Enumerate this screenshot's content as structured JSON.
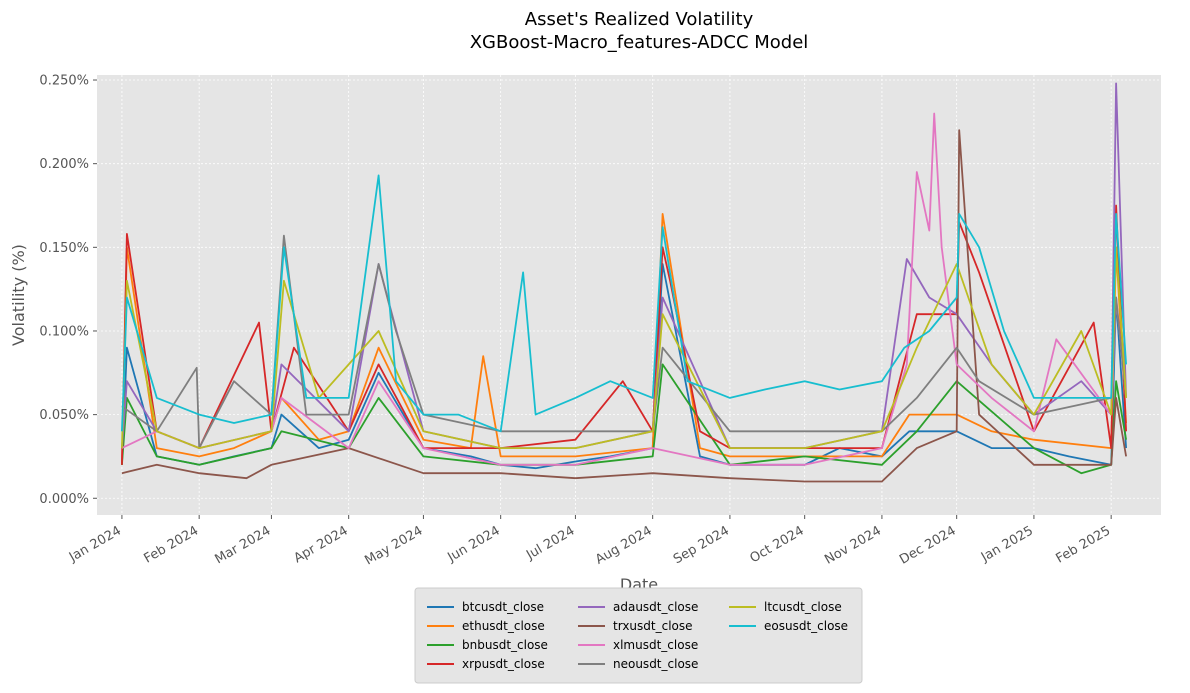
{
  "chart_data": {
    "type": "line",
    "title": "Asset's Realized Volatility",
    "subtitle": "XGBoost-Macro_features-ADCC Model",
    "xlabel": "Date",
    "ylabel": "Volatility (%)",
    "x_range": [
      "2023-12-22",
      "2025-02-21"
    ],
    "ylim": [
      -0.0001,
      0.00253
    ],
    "y_format": "percent_3dp",
    "grid": true,
    "legend_position": "bottom-center",
    "legend_columns": 3,
    "x_ticks": [
      {
        "date": "2024-01-01",
        "label": "Jan 2024"
      },
      {
        "date": "2024-02-01",
        "label": "Feb 2024"
      },
      {
        "date": "2024-03-01",
        "label": "Mar 2024"
      },
      {
        "date": "2024-04-01",
        "label": "Apr 2024"
      },
      {
        "date": "2024-05-01",
        "label": "May 2024"
      },
      {
        "date": "2024-06-01",
        "label": "Jun 2024"
      },
      {
        "date": "2024-07-01",
        "label": "Jul 2024"
      },
      {
        "date": "2024-08-01",
        "label": "Aug 2024"
      },
      {
        "date": "2024-09-01",
        "label": "Sep 2024"
      },
      {
        "date": "2024-10-01",
        "label": "Oct 2024"
      },
      {
        "date": "2024-11-01",
        "label": "Nov 2024"
      },
      {
        "date": "2024-12-01",
        "label": "Dec 2024"
      },
      {
        "date": "2025-01-01",
        "label": "Jan 2025"
      },
      {
        "date": "2025-02-01",
        "label": "Feb 2025"
      }
    ],
    "y_ticks": [
      {
        "value": 0.0,
        "label": "0.000%"
      },
      {
        "value": 0.0005,
        "label": "0.050%"
      },
      {
        "value": 0.001,
        "label": "0.100%"
      },
      {
        "value": 0.0015,
        "label": "0.150%"
      },
      {
        "value": 0.002,
        "label": "0.200%"
      },
      {
        "value": 0.0025,
        "label": "0.250%"
      }
    ],
    "series": [
      {
        "name": "btcusdt_close",
        "color": "#1f77b4",
        "x": [
          "2024-01-01",
          "2024-01-03",
          "2024-01-15",
          "2024-02-01",
          "2024-02-15",
          "2024-03-01",
          "2024-03-05",
          "2024-03-20",
          "2024-04-01",
          "2024-04-13",
          "2024-05-01",
          "2024-05-20",
          "2024-06-01",
          "2024-06-15",
          "2024-07-01",
          "2024-07-15",
          "2024-08-01",
          "2024-08-05",
          "2024-08-20",
          "2024-09-01",
          "2024-09-15",
          "2024-10-01",
          "2024-10-15",
          "2024-11-01",
          "2024-11-12",
          "2024-12-01",
          "2024-12-15",
          "2025-01-01",
          "2025-01-15",
          "2025-02-01",
          "2025-02-03",
          "2025-02-07"
        ],
        "y": [
          0.0002,
          0.0009,
          0.00025,
          0.0002,
          0.00025,
          0.0003,
          0.0005,
          0.0003,
          0.00035,
          0.00075,
          0.0003,
          0.00025,
          0.0002,
          0.00018,
          0.00022,
          0.00025,
          0.0003,
          0.0014,
          0.00025,
          0.0002,
          0.0002,
          0.0002,
          0.0003,
          0.00025,
          0.0004,
          0.0004,
          0.0003,
          0.0003,
          0.00025,
          0.0002,
          0.0012,
          0.0003
        ]
      },
      {
        "name": "ethusdt_close",
        "color": "#ff7f0e",
        "x": [
          "2024-01-01",
          "2024-01-03",
          "2024-01-15",
          "2024-02-01",
          "2024-02-15",
          "2024-03-01",
          "2024-03-05",
          "2024-03-20",
          "2024-04-01",
          "2024-04-13",
          "2024-05-01",
          "2024-05-20",
          "2024-05-25",
          "2024-06-01",
          "2024-07-01",
          "2024-08-01",
          "2024-08-05",
          "2024-08-20",
          "2024-09-01",
          "2024-10-01",
          "2024-11-01",
          "2024-11-12",
          "2024-12-01",
          "2024-12-15",
          "2025-01-01",
          "2025-02-01",
          "2025-02-03",
          "2025-02-07"
        ],
        "y": [
          0.0002,
          0.0015,
          0.0003,
          0.00025,
          0.0003,
          0.0004,
          0.0006,
          0.00035,
          0.0004,
          0.0009,
          0.00035,
          0.0003,
          0.00085,
          0.00025,
          0.00025,
          0.0003,
          0.0017,
          0.0003,
          0.00025,
          0.00025,
          0.00025,
          0.0005,
          0.0005,
          0.0004,
          0.00035,
          0.0003,
          0.0015,
          0.00045
        ]
      },
      {
        "name": "bnbusdt_close",
        "color": "#2ca02c",
        "x": [
          "2024-01-01",
          "2024-01-03",
          "2024-01-15",
          "2024-02-01",
          "2024-03-01",
          "2024-03-05",
          "2024-04-01",
          "2024-04-13",
          "2024-05-01",
          "2024-06-01",
          "2024-07-01",
          "2024-08-01",
          "2024-08-05",
          "2024-09-01",
          "2024-10-01",
          "2024-11-01",
          "2024-11-15",
          "2024-12-01",
          "2025-01-01",
          "2025-01-20",
          "2025-02-01",
          "2025-02-03",
          "2025-02-07"
        ],
        "y": [
          0.0002,
          0.0006,
          0.00025,
          0.0002,
          0.0003,
          0.0004,
          0.0003,
          0.0006,
          0.00025,
          0.0002,
          0.0002,
          0.00025,
          0.0008,
          0.0002,
          0.00025,
          0.0002,
          0.0004,
          0.0007,
          0.0003,
          0.00015,
          0.0002,
          0.0007,
          0.00035
        ]
      },
      {
        "name": "xrpusdt_close",
        "color": "#d62728",
        "x": [
          "2024-01-01",
          "2024-01-03",
          "2024-01-15",
          "2024-02-01",
          "2024-02-25",
          "2024-03-01",
          "2024-03-10",
          "2024-04-01",
          "2024-04-13",
          "2024-05-01",
          "2024-06-01",
          "2024-07-01",
          "2024-07-20",
          "2024-08-01",
          "2024-08-05",
          "2024-08-08",
          "2024-08-20",
          "2024-09-01",
          "2024-10-01",
          "2024-11-01",
          "2024-11-15",
          "2024-12-01",
          "2024-12-02",
          "2024-12-10",
          "2025-01-01",
          "2025-01-25",
          "2025-02-01",
          "2025-02-03",
          "2025-02-07"
        ],
        "y": [
          0.0002,
          0.00158,
          0.0004,
          0.0003,
          0.00105,
          0.0004,
          0.0009,
          0.0004,
          0.0008,
          0.0003,
          0.0003,
          0.00035,
          0.0007,
          0.0004,
          0.0015,
          0.0013,
          0.0004,
          0.0003,
          0.0003,
          0.0003,
          0.0011,
          0.0011,
          0.00165,
          0.00135,
          0.0004,
          0.00105,
          0.0003,
          0.00175,
          0.0004
        ]
      },
      {
        "name": "adausdt_close",
        "color": "#9467bd",
        "x": [
          "2024-01-01",
          "2024-01-03",
          "2024-01-15",
          "2024-02-01",
          "2024-03-01",
          "2024-03-05",
          "2024-04-01",
          "2024-04-13",
          "2024-05-01",
          "2024-06-01",
          "2024-07-01",
          "2024-08-01",
          "2024-08-05",
          "2024-09-01",
          "2024-10-01",
          "2024-11-01",
          "2024-11-11",
          "2024-11-20",
          "2024-12-01",
          "2024-12-15",
          "2025-01-01",
          "2025-01-20",
          "2025-02-01",
          "2025-02-03",
          "2025-02-07"
        ],
        "y": [
          0.0003,
          0.0007,
          0.0004,
          0.0003,
          0.0004,
          0.0008,
          0.0004,
          0.0014,
          0.0004,
          0.0003,
          0.0003,
          0.0004,
          0.0012,
          0.0003,
          0.0003,
          0.0004,
          0.00143,
          0.0012,
          0.0011,
          0.0008,
          0.0005,
          0.0007,
          0.0005,
          0.00248,
          0.0006
        ]
      },
      {
        "name": "trxusdt_close",
        "color": "#8c564b",
        "x": [
          "2024-01-01",
          "2024-01-15",
          "2024-02-01",
          "2024-02-20",
          "2024-03-01",
          "2024-04-01",
          "2024-05-01",
          "2024-06-01",
          "2024-07-01",
          "2024-08-01",
          "2024-09-01",
          "2024-10-01",
          "2024-11-01",
          "2024-11-15",
          "2024-12-01",
          "2024-12-02",
          "2024-12-10",
          "2025-01-01",
          "2025-02-01",
          "2025-02-03",
          "2025-02-07"
        ],
        "y": [
          0.00015,
          0.0002,
          0.00015,
          0.00012,
          0.0002,
          0.0003,
          0.00015,
          0.00015,
          0.00012,
          0.00015,
          0.00012,
          0.0001,
          0.0001,
          0.0003,
          0.0004,
          0.0022,
          0.0005,
          0.0002,
          0.0002,
          0.0006,
          0.00025
        ]
      },
      {
        "name": "xlmusdt_close",
        "color": "#e377c2",
        "x": [
          "2024-01-01",
          "2024-01-15",
          "2024-02-01",
          "2024-03-01",
          "2024-03-05",
          "2024-04-01",
          "2024-04-13",
          "2024-05-01",
          "2024-06-01",
          "2024-07-01",
          "2024-08-01",
          "2024-09-01",
          "2024-10-01",
          "2024-11-01",
          "2024-11-11",
          "2024-11-15",
          "2024-11-20",
          "2024-11-22",
          "2024-11-25",
          "2024-12-01",
          "2024-12-15",
          "2025-01-01",
          "2025-01-10",
          "2025-02-01",
          "2025-02-03",
          "2025-02-07"
        ],
        "y": [
          0.0003,
          0.0004,
          0.0003,
          0.0004,
          0.0006,
          0.0003,
          0.0007,
          0.0003,
          0.0002,
          0.0002,
          0.0003,
          0.0002,
          0.0002,
          0.0003,
          0.0008,
          0.00195,
          0.0016,
          0.0023,
          0.0015,
          0.0008,
          0.0006,
          0.0004,
          0.00095,
          0.0005,
          0.0012,
          0.0006
        ]
      },
      {
        "name": "neousdt_close",
        "color": "#7f7f7f",
        "x": [
          "2024-01-01",
          "2024-01-15",
          "2024-01-31",
          "2024-02-01",
          "2024-02-15",
          "2024-03-01",
          "2024-03-06",
          "2024-03-15",
          "2024-04-01",
          "2024-04-13",
          "2024-04-20",
          "2024-05-01",
          "2024-06-01",
          "2024-07-01",
          "2024-08-01",
          "2024-08-05",
          "2024-09-01",
          "2024-10-01",
          "2024-11-01",
          "2024-11-15",
          "2024-12-01",
          "2024-12-10",
          "2025-01-01",
          "2025-02-01",
          "2025-02-03",
          "2025-02-07"
        ],
        "y": [
          0.00055,
          0.0004,
          0.00078,
          0.0003,
          0.0007,
          0.0005,
          0.00157,
          0.0005,
          0.0005,
          0.0014,
          0.001,
          0.0005,
          0.0004,
          0.0004,
          0.0004,
          0.0009,
          0.0004,
          0.0004,
          0.0004,
          0.0006,
          0.0009,
          0.0007,
          0.0005,
          0.0006,
          0.0012,
          0.0006
        ]
      },
      {
        "name": "ltcusdt_close",
        "color": "#bcbd22",
        "x": [
          "2024-01-01",
          "2024-01-03",
          "2024-01-15",
          "2024-02-01",
          "2024-03-01",
          "2024-03-06",
          "2024-03-20",
          "2024-04-01",
          "2024-04-13",
          "2024-05-01",
          "2024-06-01",
          "2024-07-01",
          "2024-08-01",
          "2024-08-05",
          "2024-09-01",
          "2024-10-01",
          "2024-11-01",
          "2024-11-15",
          "2024-12-01",
          "2024-12-15",
          "2025-01-01",
          "2025-01-20",
          "2025-02-01",
          "2025-02-03",
          "2025-02-07"
        ],
        "y": [
          0.0003,
          0.0013,
          0.0004,
          0.0003,
          0.0004,
          0.0013,
          0.0006,
          0.0008,
          0.001,
          0.0004,
          0.0003,
          0.0003,
          0.0004,
          0.0011,
          0.0003,
          0.0003,
          0.0004,
          0.0009,
          0.0014,
          0.0008,
          0.0005,
          0.001,
          0.0005,
          0.0015,
          0.0006
        ]
      },
      {
        "name": "eosusdt_close",
        "color": "#17becf",
        "x": [
          "2024-01-01",
          "2024-01-03",
          "2024-01-15",
          "2024-02-01",
          "2024-02-15",
          "2024-03-01",
          "2024-03-06",
          "2024-03-15",
          "2024-04-01",
          "2024-04-13",
          "2024-04-20",
          "2024-05-01",
          "2024-05-15",
          "2024-06-01",
          "2024-06-10",
          "2024-06-15",
          "2024-07-01",
          "2024-07-15",
          "2024-08-01",
          "2024-08-05",
          "2024-08-15",
          "2024-09-01",
          "2024-09-15",
          "2024-10-01",
          "2024-10-15",
          "2024-11-01",
          "2024-11-10",
          "2024-11-20",
          "2024-12-01",
          "2024-12-02",
          "2024-12-10",
          "2024-12-20",
          "2025-01-01",
          "2025-01-15",
          "2025-02-01",
          "2025-02-03",
          "2025-02-07"
        ],
        "y": [
          0.0004,
          0.0012,
          0.0006,
          0.0005,
          0.00045,
          0.0005,
          0.0015,
          0.0006,
          0.0006,
          0.00193,
          0.0007,
          0.0005,
          0.0005,
          0.0004,
          0.00135,
          0.0005,
          0.0006,
          0.0007,
          0.0006,
          0.00162,
          0.0007,
          0.0006,
          0.00065,
          0.0007,
          0.00065,
          0.0007,
          0.0009,
          0.001,
          0.0012,
          0.0017,
          0.0015,
          0.001,
          0.0006,
          0.0006,
          0.0006,
          0.0017,
          0.0008
        ]
      }
    ]
  }
}
